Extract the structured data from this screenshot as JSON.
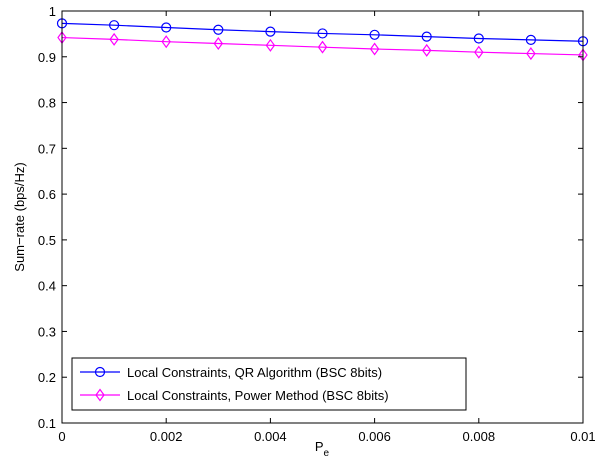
{
  "chart_data": {
    "type": "line",
    "title": "",
    "xlabel": "P",
    "xlabel_sub": "e",
    "ylabel": "Sum−rate (bps/Hz)",
    "xlim": [
      0,
      0.01
    ],
    "ylim": [
      0.1,
      1
    ],
    "grid": false,
    "legend_position": "bottom-left",
    "x_ticks": [
      0,
      0.002,
      0.004,
      0.006,
      0.008,
      0.01
    ],
    "x_tick_labels": [
      "0",
      "0.002",
      "0.004",
      "0.006",
      "0.008",
      "0.01"
    ],
    "y_ticks": [
      0.1,
      0.2,
      0.3,
      0.4,
      0.5,
      0.6,
      0.7,
      0.8,
      0.9,
      1
    ],
    "y_tick_labels": [
      "0.1",
      "0.2",
      "0.3",
      "0.4",
      "0.5",
      "0.6",
      "0.7",
      "0.8",
      "0.9",
      "1"
    ],
    "x": [
      0,
      0.001,
      0.002,
      0.003,
      0.004,
      0.005,
      0.006,
      0.007,
      0.008,
      0.009,
      0.01
    ],
    "series": [
      {
        "name": "Local Constraints, QR Algorithm (BSC 8bits)",
        "marker": "circle",
        "color": "#0000ff",
        "values": [
          0.973,
          0.969,
          0.964,
          0.959,
          0.955,
          0.951,
          0.948,
          0.944,
          0.94,
          0.937,
          0.934
        ]
      },
      {
        "name": "Local Constraints, Power Method (BSC 8bits)",
        "marker": "diamond",
        "color": "#ff00ff",
        "values": [
          0.942,
          0.938,
          0.933,
          0.929,
          0.925,
          0.921,
          0.917,
          0.914,
          0.91,
          0.907,
          0.904
        ]
      }
    ]
  }
}
